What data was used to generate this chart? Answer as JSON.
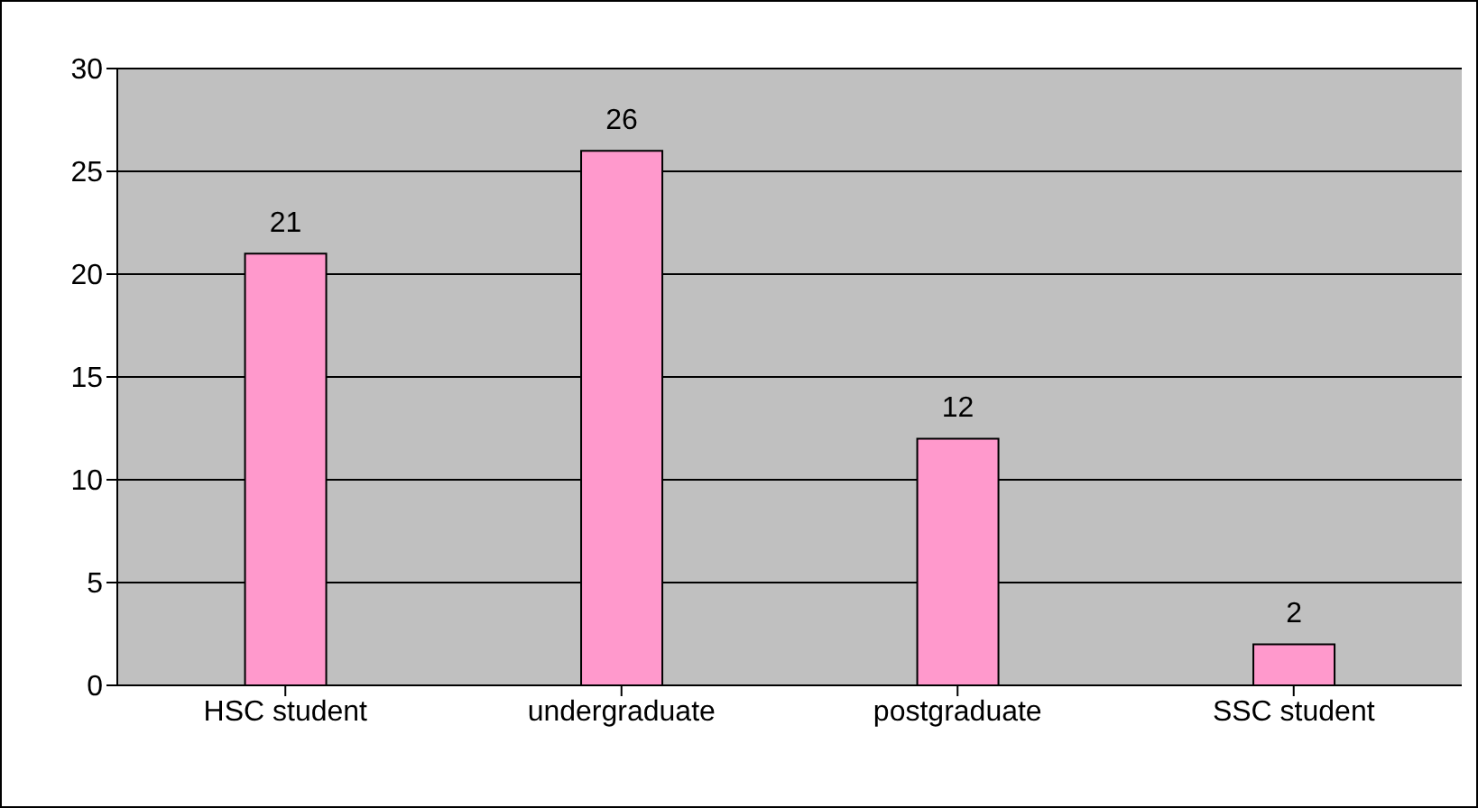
{
  "chart_data": {
    "type": "bar",
    "categories": [
      "HSC student",
      "undergraduate",
      "postgraduate",
      "SSC student"
    ],
    "values": [
      21,
      26,
      12,
      2
    ],
    "color": "#ff99cc",
    "ylim": [
      0,
      30
    ],
    "yticks": [
      0,
      5,
      10,
      15,
      20,
      25,
      30
    ],
    "grid": "y",
    "data_labels": true
  }
}
